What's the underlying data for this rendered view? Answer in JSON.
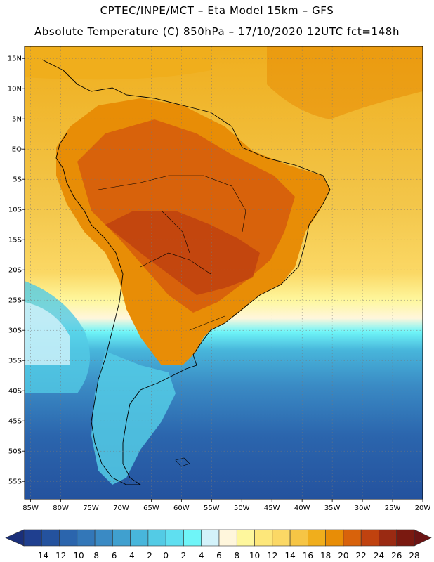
{
  "title": {
    "line1": "CPTEC/INPE/MCT –  Eta Model 15km – GFS",
    "line2": "Absolute Temperature (C) 850hPa – 17/10/2020 12UTC fct=148h"
  },
  "axes": {
    "lon_labels": [
      "85W",
      "80W",
      "75W",
      "70W",
      "65W",
      "60W",
      "55W",
      "50W",
      "45W",
      "40W",
      "35W",
      "30W",
      "25W",
      "20W"
    ],
    "lon_values": [
      -85,
      -80,
      -75,
      -70,
      -65,
      -60,
      -55,
      -50,
      -45,
      -40,
      -35,
      -30,
      -25,
      -20
    ],
    "lat_labels": [
      "15N",
      "10N",
      "5N",
      "EQ",
      "5S",
      "10S",
      "15S",
      "20S",
      "25S",
      "30S",
      "35S",
      "40S",
      "45S",
      "50S",
      "55S"
    ],
    "lat_values": [
      15,
      10,
      5,
      0,
      -5,
      -10,
      -15,
      -20,
      -25,
      -30,
      -35,
      -40,
      -45,
      -50,
      -55
    ],
    "lon_range": [
      -86,
      -20
    ],
    "lat_range": [
      17,
      -58
    ]
  },
  "colorbar": {
    "labels": [
      "-14",
      "-12",
      "-10",
      "-8",
      "-6",
      "-4",
      "-2",
      "0",
      "2",
      "4",
      "6",
      "8",
      "10",
      "12",
      "14",
      "16",
      "18",
      "20",
      "22",
      "24",
      "26",
      "28"
    ],
    "colors": [
      "#1f3f8f",
      "#24529e",
      "#2b65ad",
      "#3377b8",
      "#3a8ac4",
      "#40a0cf",
      "#48b6db",
      "#53cbe5",
      "#5fdff0",
      "#6ff5f8",
      "#d3f2fa",
      "#fff6dc",
      "#fef79d",
      "#fde77a",
      "#fbd865",
      "#f6c545",
      "#f0ae1c",
      "#e88d06",
      "#d8620b",
      "#c0420f",
      "#9a2a12",
      "#7a1910"
    ],
    "under_color": "#1a2f7a",
    "over_color": "#6b1414",
    "units": "C"
  },
  "legend_colors": {
    "ocean_warm": "#efae1e",
    "ocean_cool": "#f3c64a",
    "land_hot": "#d86e10",
    "land_hotter": "#c0531a",
    "cold_south": "#2d67b0",
    "mid_cyan": "#53c8e2"
  }
}
